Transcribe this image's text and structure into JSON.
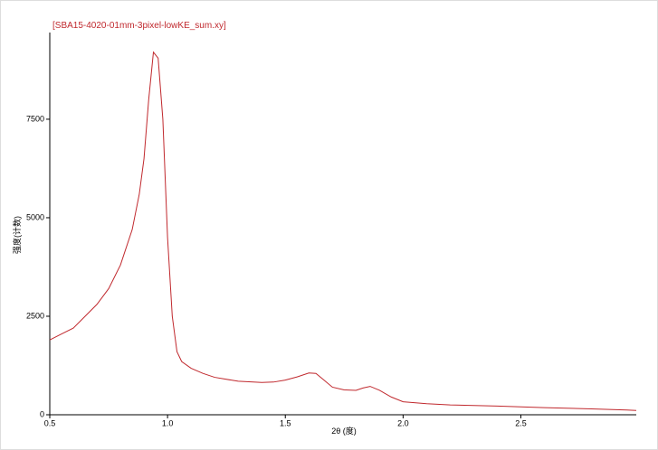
{
  "chart_data": {
    "type": "line",
    "title": "[SBA15-4020-01mm-3pixel-lowKE_sum.xy]",
    "x_label": "2θ (度)",
    "y_label": "强度(计数)",
    "xlim": [
      0.5,
      2.99
    ],
    "ylim": [
      0,
      9700
    ],
    "xticks": [
      0.5,
      {
        "value": 1,
        "label": "1.0"
      },
      1.5,
      {
        "value": 2,
        "label": "2.0"
      },
      2.5
    ],
    "yticks": [
      0,
      2500,
      5000,
      7500
    ],
    "series": [
      {
        "name": "SBA15-4020-01mm-3pixel-lowKE_sum.xy",
        "color": "#c0282d",
        "x": [
          0.5,
          0.55,
          0.6,
          0.65,
          0.7,
          0.75,
          0.8,
          0.85,
          0.88,
          0.9,
          0.92,
          0.94,
          0.96,
          0.98,
          1.0,
          1.02,
          1.04,
          1.06,
          1.1,
          1.15,
          1.2,
          1.3,
          1.4,
          1.45,
          1.5,
          1.55,
          1.6,
          1.63,
          1.66,
          1.7,
          1.75,
          1.8,
          1.83,
          1.86,
          1.9,
          1.95,
          2.0,
          2.1,
          2.2,
          2.4,
          2.6,
          2.8,
          2.95,
          2.99
        ],
        "values": [
          1900,
          2050,
          2200,
          2500,
          2800,
          3200,
          3800,
          4700,
          5600,
          6500,
          8000,
          9200,
          9050,
          7500,
          4500,
          2500,
          1600,
          1350,
          1180,
          1050,
          950,
          850,
          820,
          830,
          880,
          960,
          1060,
          1050,
          900,
          700,
          630,
          620,
          680,
          720,
          620,
          450,
          330,
          280,
          250,
          220,
          180,
          150,
          120,
          110
        ]
      }
    ]
  }
}
